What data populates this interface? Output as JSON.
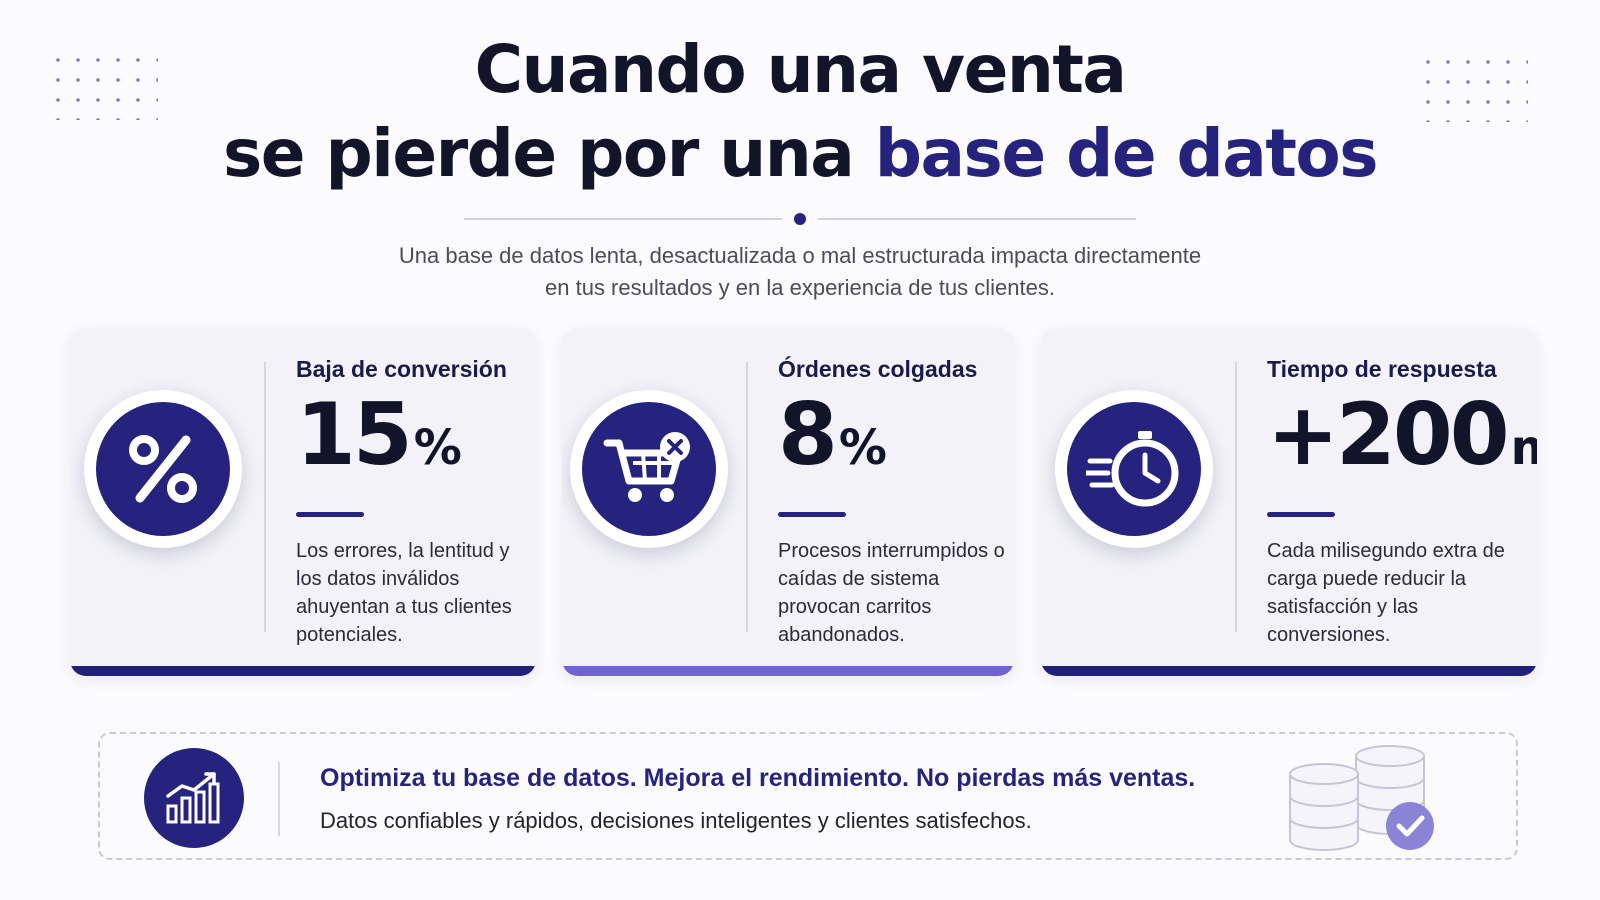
{
  "title": {
    "line1": "Cuando una venta",
    "line2_prefix": "se pierde por una ",
    "line2_accent": "base de datos"
  },
  "subtitle": {
    "line1": "Una base de datos lenta, desactualizada o mal estructurada impacta directamente",
    "line2": "en tus resultados y en la experiencia de tus clientes."
  },
  "cards": [
    {
      "label": "Baja de conversión",
      "value": "15",
      "unit": "%",
      "icon": "percent-icon",
      "description": "Los errores, la lentitud y los datos inválidos ahuyentan a tus clientes potenciales."
    },
    {
      "label": "Órdenes colgadas",
      "value": "8",
      "unit": "%",
      "icon": "cart-error-icon",
      "description": "Procesos interrumpidos o caídas de sistema provocan carritos abandonados."
    },
    {
      "label": "Tiempo de respuesta",
      "value": "+200",
      "unit": "ms",
      "icon": "stopwatch-icon",
      "description": "Cada milisegundo extra de carga puede reducir la satisfacción y las conversiones."
    }
  ],
  "banner": {
    "headline": "Optimiza tu base de datos. Mejora el rendimiento. No pierdas más ventas.",
    "subtext": "Datos confiables y rápidos, decisiones inteligentes y clientes satisfechos.",
    "icon": "growth-chart-icon",
    "illustration": "database-check-icon"
  },
  "colors": {
    "primary": "#25237e",
    "accent_light": "#6e63d9",
    "text_dark": "#12142a",
    "card_bg": "#f2f2f8"
  }
}
